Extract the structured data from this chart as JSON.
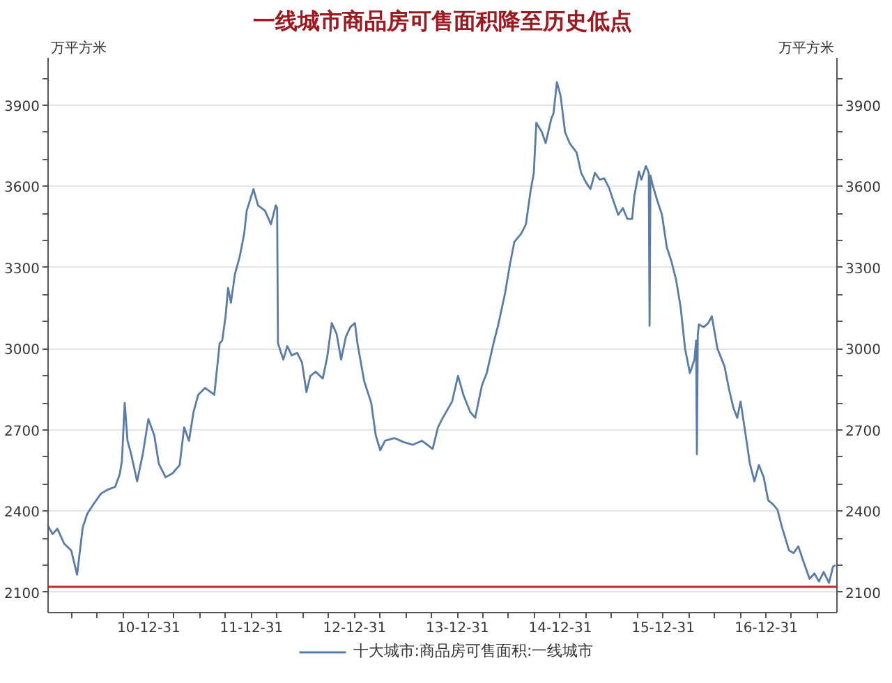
{
  "chart_data": {
    "type": "line",
    "title": "一线城市商品房可售面积降至历史低点",
    "ylabel": "万平方米",
    "y2label": "万平方米",
    "x": [
      "2010-01-08",
      "2010-01-24",
      "2010-02-10",
      "2010-03-06",
      "2010-03-31",
      "2010-04-21",
      "2010-05-11",
      "2010-05-27",
      "2010-06-21",
      "2010-07-15",
      "2010-08-09",
      "2010-09-03",
      "2010-09-19",
      "2010-09-27",
      "2010-10-07",
      "2010-10-17",
      "2010-10-30",
      "2010-11-20",
      "2010-12-10",
      "2010-12-30",
      "2011-01-20",
      "2011-02-05",
      "2011-03-01",
      "2011-03-26",
      "2011-04-20",
      "2011-05-06",
      "2011-05-23",
      "2011-06-08",
      "2011-06-25",
      "2011-07-19",
      "2011-08-21",
      "2011-09-09",
      "2011-09-18",
      "2011-09-30",
      "2011-10-09",
      "2011-10-19",
      "2011-11-02",
      "2011-11-19",
      "2011-12-05",
      "2011-12-14",
      "2012-01-07",
      "2012-01-23",
      "2012-02-17",
      "2012-03-09",
      "2012-03-26",
      "2012-03-31",
      "2012-04-03",
      "2012-04-22",
      "2012-05-06",
      "2012-05-22",
      "2012-06-10",
      "2012-06-27",
      "2012-07-13",
      "2012-07-27",
      "2012-08-15",
      "2012-09-09",
      "2012-09-25",
      "2012-10-11",
      "2012-10-28",
      "2012-11-13",
      "2012-11-30",
      "2012-12-16",
      "2013-01-01",
      "2013-01-10",
      "2013-02-03",
      "2013-02-28",
      "2013-03-16",
      "2013-04-01",
      "2013-04-18",
      "2013-05-21",
      "2013-06-23",
      "2013-07-25",
      "2013-08-27",
      "2013-10-04",
      "2013-10-23",
      "2013-11-09",
      "2013-12-12",
      "2014-01-02",
      "2014-01-21",
      "2014-02-15",
      "2014-03-04",
      "2014-03-28",
      "2014-04-14",
      "2014-05-08",
      "2014-05-24",
      "2014-06-18",
      "2014-07-05",
      "2014-07-21",
      "2014-08-14",
      "2014-08-31",
      "2014-09-16",
      "2014-09-28",
      "2014-10-07",
      "2014-10-27",
      "2014-11-09",
      "2014-11-29",
      "2014-12-07",
      "2014-12-19",
      "2015-01-01",
      "2015-01-17",
      "2015-02-02",
      "2015-02-27",
      "2015-03-15",
      "2015-04-01",
      "2015-04-17",
      "2015-05-03",
      "2015-05-20",
      "2015-06-05",
      "2015-06-22",
      "2015-07-08",
      "2015-07-25",
      "2015-08-10",
      "2015-08-26",
      "2015-09-12",
      "2015-09-20",
      "2015-10-06",
      "2015-10-15",
      "2015-10-31",
      "2015-11-10",
      "2015-11-13",
      "2015-11-16",
      "2015-11-24",
      "2015-12-11",
      "2015-12-27",
      "2016-01-13",
      "2016-01-29",
      "2016-02-15",
      "2016-03-02",
      "2016-03-18",
      "2016-04-04",
      "2016-04-20",
      "2016-04-26",
      "2016-04-29",
      "2016-05-02",
      "2016-05-06",
      "2016-05-23",
      "2016-06-08",
      "2016-06-21",
      "2016-07-11",
      "2016-08-05",
      "2016-08-21",
      "2016-09-06",
      "2016-09-19",
      "2016-10-01",
      "2016-10-17",
      "2016-11-03",
      "2016-11-19",
      "2016-12-05",
      "2016-12-22",
      "2017-01-07",
      "2017-01-24",
      "2017-02-09",
      "2017-02-25",
      "2017-03-22",
      "2017-04-07",
      "2017-04-24",
      "2017-05-10",
      "2017-06-03",
      "2017-06-20",
      "2017-07-06",
      "2017-07-23",
      "2017-08-11",
      "2017-08-25",
      "2017-09-03"
    ],
    "series": [
      {
        "name": "十大城市:商品房可售面积:一线城市",
        "color": "#5a7ca5",
        "values": [
          2345,
          2315,
          2335,
          2280,
          2255,
          2165,
          2340,
          2390,
          2430,
          2465,
          2480,
          2490,
          2535,
          2585,
          2800,
          2660,
          2610,
          2510,
          2610,
          2740,
          2680,
          2575,
          2525,
          2540,
          2570,
          2710,
          2660,
          2765,
          2830,
          2855,
          2830,
          3020,
          3030,
          3120,
          3225,
          3170,
          3275,
          3340,
          3425,
          3510,
          3590,
          3530,
          3510,
          3460,
          3530,
          3520,
          3020,
          2960,
          3010,
          2975,
          2985,
          2950,
          2840,
          2900,
          2915,
          2890,
          2970,
          3095,
          3055,
          2960,
          3045,
          3080,
          3095,
          3020,
          2880,
          2800,
          2680,
          2625,
          2660,
          2670,
          2655,
          2645,
          2660,
          2630,
          2710,
          2745,
          2805,
          2900,
          2830,
          2765,
          2745,
          2865,
          2910,
          3020,
          3085,
          3205,
          3310,
          3395,
          3425,
          3460,
          3580,
          3650,
          3835,
          3800,
          3760,
          3850,
          3870,
          3985,
          3935,
          3800,
          3760,
          3725,
          3650,
          3615,
          3590,
          3650,
          3625,
          3630,
          3595,
          3545,
          3495,
          3520,
          3480,
          3480,
          3565,
          3655,
          3625,
          3675,
          3650,
          3085,
          3640,
          3605,
          3545,
          3495,
          3375,
          3325,
          3255,
          3155,
          3000,
          2910,
          2960,
          3030,
          2610,
          3050,
          3090,
          3080,
          3095,
          3120,
          3000,
          2935,
          2850,
          2780,
          2745,
          2805,
          2695,
          2575,
          2510,
          2570,
          2525,
          2440,
          2425,
          2405,
          2340,
          2255,
          2245,
          2270,
          2220,
          2150,
          2170,
          2140,
          2175,
          2135,
          2195,
          2200
        ]
      }
    ],
    "xlim": [
      "2010-01-08",
      "2017-09-08"
    ],
    "xticks": [
      {
        "value": "2010-03-31",
        "label": null
      },
      {
        "value": "2010-06-30",
        "label": null
      },
      {
        "value": "2010-09-30",
        "label": null
      },
      {
        "value": "2010-12-31",
        "label": "10-12-31"
      },
      {
        "value": "2011-03-31",
        "label": null
      },
      {
        "value": "2011-06-30",
        "label": null
      },
      {
        "value": "2011-09-30",
        "label": null
      },
      {
        "value": "2011-12-31",
        "label": "11-12-31"
      },
      {
        "value": "2012-03-31",
        "label": null
      },
      {
        "value": "2012-06-30",
        "label": null
      },
      {
        "value": "2012-09-30",
        "label": null
      },
      {
        "value": "2012-12-31",
        "label": "12-12-31"
      },
      {
        "value": "2013-03-31",
        "label": null
      },
      {
        "value": "2013-06-30",
        "label": null
      },
      {
        "value": "2013-09-30",
        "label": null
      },
      {
        "value": "2013-12-31",
        "label": "13-12-31"
      },
      {
        "value": "2014-03-31",
        "label": null
      },
      {
        "value": "2014-06-30",
        "label": null
      },
      {
        "value": "2014-09-30",
        "label": null
      },
      {
        "value": "2014-12-31",
        "label": "14-12-31"
      },
      {
        "value": "2015-03-31",
        "label": null
      },
      {
        "value": "2015-06-30",
        "label": null
      },
      {
        "value": "2015-09-30",
        "label": null
      },
      {
        "value": "2015-12-31",
        "label": "15-12-31"
      },
      {
        "value": "2016-03-31",
        "label": null
      },
      {
        "value": "2016-06-30",
        "label": null
      },
      {
        "value": "2016-09-30",
        "label": null
      },
      {
        "value": "2016-12-31",
        "label": "16-12-31"
      },
      {
        "value": "2017-03-31",
        "label": null
      },
      {
        "value": "2017-06-30",
        "label": null
      }
    ],
    "ylim": [
      2025,
      4075
    ],
    "yticks": [
      2100,
      {
        "value": 2200,
        "label": null
      },
      {
        "value": 2300,
        "label": null
      },
      2400,
      {
        "value": 2500,
        "label": null
      },
      {
        "value": 2600,
        "label": null
      },
      2700,
      {
        "value": 2800,
        "label": null
      },
      {
        "value": 2900,
        "label": null
      },
      3000,
      {
        "value": 3100,
        "label": null
      },
      {
        "value": 3200,
        "label": null
      },
      3300,
      {
        "value": 3400,
        "label": null
      },
      {
        "value": 3500,
        "label": null
      },
      3600,
      {
        "value": 3700,
        "label": null
      },
      {
        "value": 3800,
        "label": null
      },
      3900,
      {
        "value": 4000,
        "label": null
      }
    ],
    "y2lim": [
      2025,
      4075
    ],
    "y2ticks": [
      2100,
      {
        "value": 2200,
        "label": null
      },
      {
        "value": 2300,
        "label": null
      },
      2400,
      {
        "value": 2500,
        "label": null
      },
      {
        "value": 2600,
        "label": null
      },
      2700,
      {
        "value": 2800,
        "label": null
      },
      {
        "value": 2900,
        "label": null
      },
      3000,
      {
        "value": 3100,
        "label": null
      },
      {
        "value": 3200,
        "label": null
      },
      3300,
      {
        "value": 3400,
        "label": null
      },
      {
        "value": 3500,
        "label": null
      },
      3600,
      {
        "value": 3700,
        "label": null
      },
      {
        "value": 3800,
        "label": null
      },
      3900,
      {
        "value": 4000,
        "label": null
      }
    ],
    "ref_lines": [
      {
        "axis": "y",
        "value": 2120,
        "color": "#c0282d"
      }
    ],
    "grid": "y",
    "legend": "bottom",
    "line_style": "solid"
  }
}
